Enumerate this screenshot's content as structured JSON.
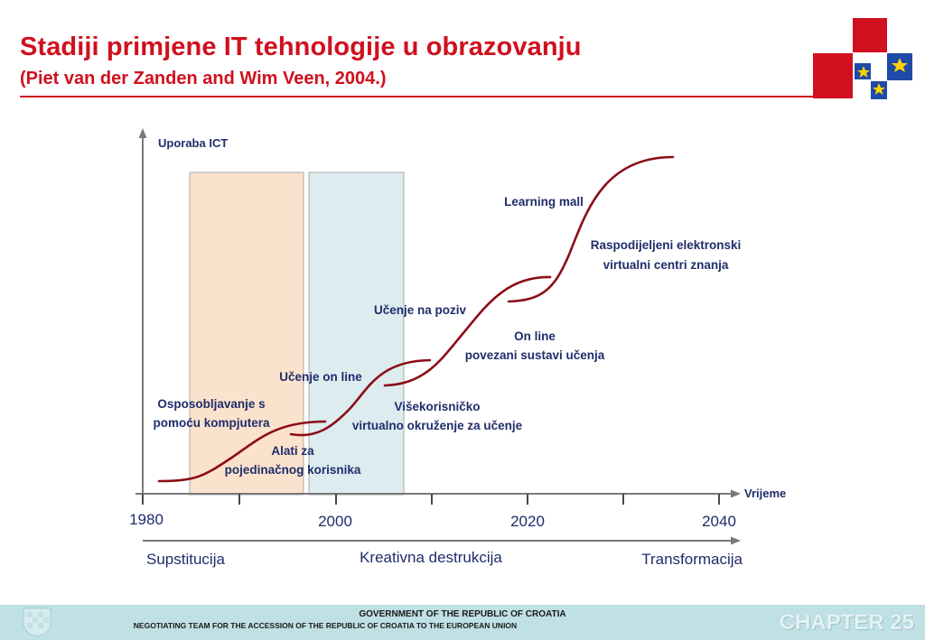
{
  "header": {
    "title": "Stadiji primjene IT tehnologije u obrazovanju",
    "subtitle": "(Piet van der Zanden and Wim Veen, 2004.)"
  },
  "diagram": {
    "y_axis_label": "Uporaba ICT",
    "x_axis_label": "Vrijeme",
    "years": [
      "1980",
      "2000",
      "2020",
      "2040"
    ],
    "phases": [
      "Supstitucija",
      "Kreativna destrukcija",
      "Transformacija"
    ],
    "labels": {
      "osposobljavanje_1": "Osposobljavanje s",
      "osposobljavanje_2": "pomoću kompjutera",
      "alati_1": "Alati za",
      "alati_2": "pojedinačnog korisnika",
      "ucenje_online": "Učenje on line",
      "visekorisnicko_1": "Višekorisničko",
      "visekorisnicko_2": "virtualno okruženje za učenje",
      "ucenje_poziv": "Učenje na poziv",
      "online_1": "On line",
      "online_2": "povezani sustavi učenja",
      "raspodijeljeni_1": "Raspodijeljeni elektronski",
      "raspodijeljeni_2": "virtualni centri znanja",
      "learning_mall": "Learning mall"
    }
  },
  "footer": {
    "line1": "GOVERNMENT OF THE REPUBLIC OF CROATIA",
    "line2": "NEGOTIATING TEAM FOR THE ACCESSION OF THE REPUBLIC OF CROATIA TO THE EUROPEAN UNION",
    "chapter": "CHAPTER 25"
  },
  "colors": {
    "title_red": "#d0101e",
    "curve": "#8b0d18",
    "label_navy": "#1f2d6b",
    "band_peach": "#fbe2cc",
    "band_blue": "#dcecef",
    "footer_bg": "#bfe0e4"
  }
}
